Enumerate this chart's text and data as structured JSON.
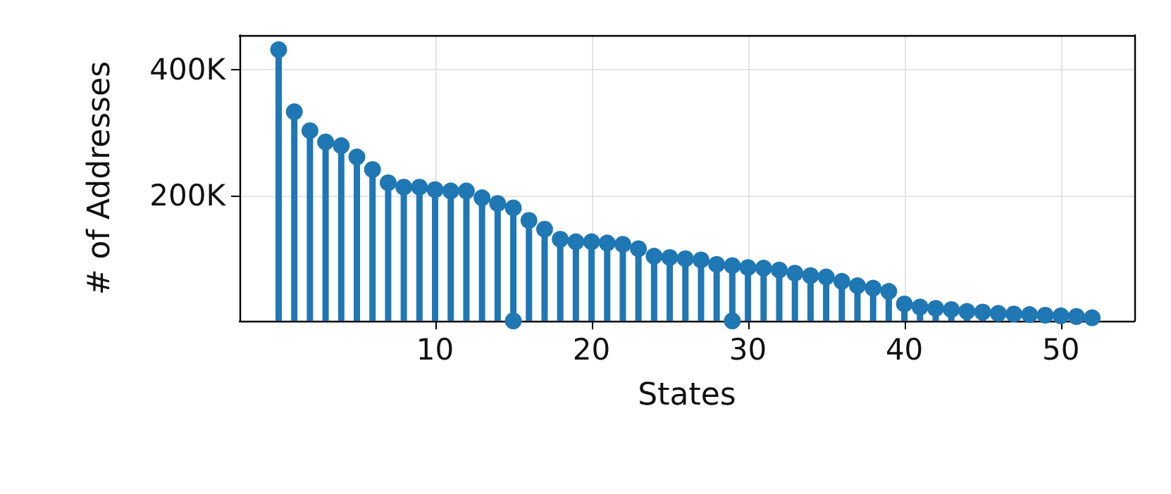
{
  "chart_data": {
    "type": "lollipop",
    "xlabel": "States",
    "ylabel": "# of Addresses",
    "x": [
      0,
      1,
      2,
      3,
      4,
      5,
      6,
      7,
      8,
      9,
      10,
      11,
      12,
      13,
      14,
      15,
      15,
      16,
      17,
      18,
      19,
      20,
      21,
      22,
      23,
      24,
      25,
      26,
      27,
      28,
      29,
      29,
      30,
      31,
      32,
      33,
      34,
      35,
      36,
      37,
      38,
      39,
      40,
      41,
      42,
      43,
      44,
      45,
      46,
      47,
      48,
      49,
      50,
      51,
      52
    ],
    "series": [
      {
        "color": "#1f77b4",
        "values": [
          432000,
          333000,
          303000,
          285000,
          279000,
          261000,
          241000,
          220000,
          213000,
          213000,
          209000,
          207000,
          207000,
          196000,
          187000,
          180000,
          0,
          160000,
          146000,
          130000,
          126000,
          126000,
          124000,
          122000,
          115000,
          103000,
          101000,
          99000,
          97000,
          90000,
          88000,
          0,
          85000,
          84000,
          81000,
          76000,
          72000,
          70000,
          63000,
          56000,
          52000,
          47000,
          27000,
          22000,
          20000,
          18000,
          15000,
          14000,
          12000,
          11000,
          10000,
          9000,
          8000,
          7000,
          5000
        ]
      }
    ],
    "xlim": [
      -2.5,
      54.7
    ],
    "xticks": [
      10,
      20,
      30,
      40,
      50
    ],
    "ylim": [
      0,
      455000
    ],
    "yticks": [
      {
        "value": 200000,
        "label": "200K"
      },
      {
        "value": 400000,
        "label": "400K"
      }
    ],
    "grid": true,
    "marker": "circle"
  }
}
